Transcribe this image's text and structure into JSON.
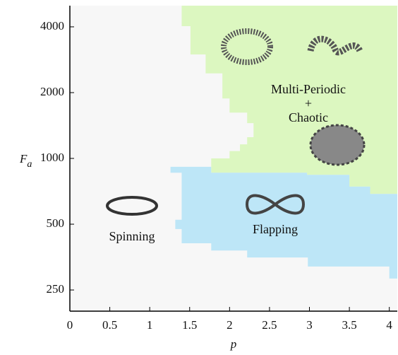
{
  "chart_data": {
    "type": "region-map",
    "xlabel": "p",
    "ylabel": {
      "main": "F",
      "sub": "a"
    },
    "xlim": [
      0,
      4.1
    ],
    "ylim": [
      200,
      5000
    ],
    "ylog": true,
    "xticks": [
      0,
      0.5,
      1,
      1.5,
      2,
      2.5,
      3,
      3.5,
      4
    ],
    "yticks": [
      250,
      500,
      1000,
      2000,
      4000
    ],
    "regions": [
      {
        "label": [
          "Spinning"
        ],
        "color": "#f7f7f7",
        "x": [
          0,
          4.1,
          4.1,
          0
        ],
        "y": [
          200,
          200,
          5000,
          5000
        ]
      },
      {
        "label": [
          "Multi-Periodic",
          "+",
          "Chaotic"
        ],
        "color": "#dcf7c0",
        "x": [
          1.4,
          4.1,
          4.1,
          3.76,
          3.76,
          3.5,
          3.5,
          2.97,
          2.97,
          1.77,
          1.77,
          2.0,
          2.0,
          2.13,
          2.13,
          2.22,
          2.22,
          2.3,
          2.3,
          2.22,
          2.22,
          2.0,
          2.0,
          1.91,
          1.91,
          1.7,
          1.7,
          1.51,
          1.51,
          1.4
        ],
        "y": [
          5000,
          5000,
          688,
          688,
          743,
          743,
          841,
          841,
          860,
          860,
          1000,
          1000,
          1080,
          1080,
          1160,
          1160,
          1250,
          1250,
          1450,
          1450,
          1620,
          1620,
          1880,
          1880,
          2450,
          2450,
          2990,
          2990,
          4030,
          4030
        ]
      },
      {
        "label": [
          "Flapping"
        ],
        "color": "#bde6f7",
        "x": [
          1.26,
          1.77,
          1.77,
          2.97,
          2.97,
          3.5,
          3.5,
          3.76,
          3.76,
          4.1,
          4.1,
          4.0,
          4.0,
          2.98,
          2.98,
          2.22,
          2.22,
          1.77,
          1.77,
          1.4,
          1.4,
          1.32,
          1.32,
          1.4,
          1.4,
          1.26
        ],
        "y": [
          915,
          915,
          860,
          860,
          841,
          841,
          743,
          743,
          688,
          688,
          282,
          282,
          320,
          320,
          352,
          352,
          379,
          379,
          409,
          409,
          475,
          475,
          524,
          524,
          860,
          860
        ]
      }
    ]
  }
}
